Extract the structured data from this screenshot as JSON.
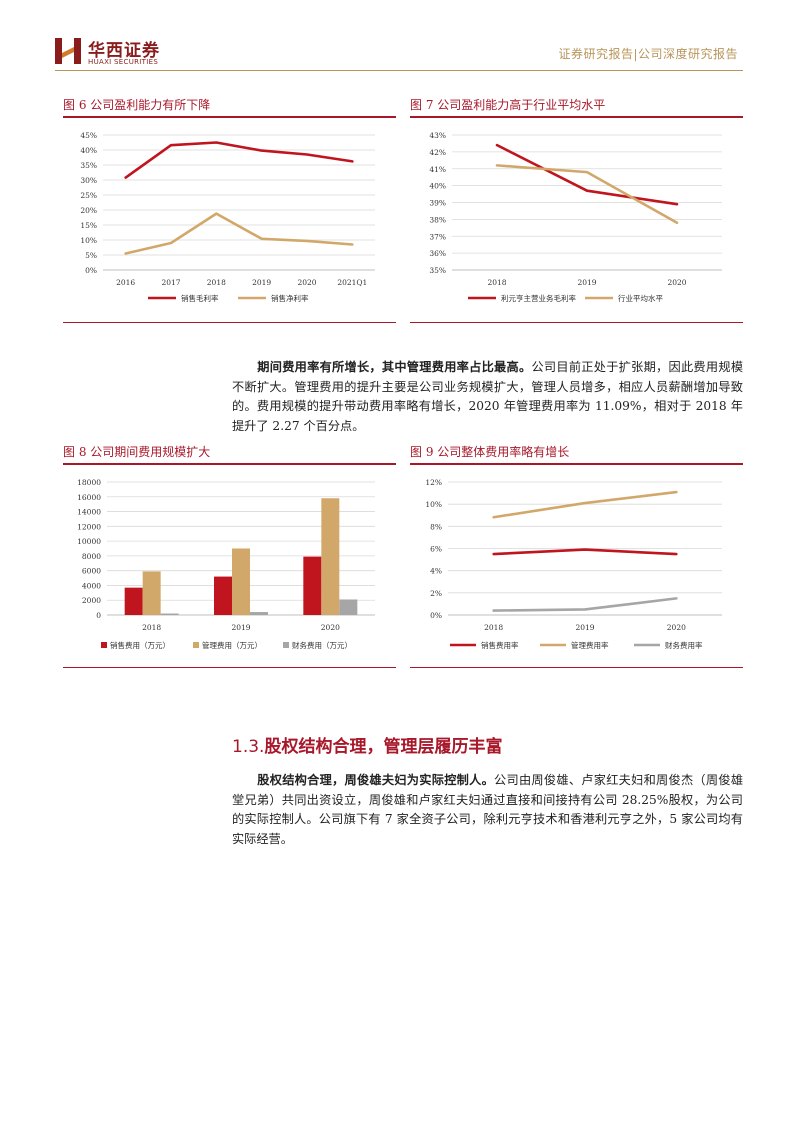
{
  "header": {
    "company_cn": "华西证券",
    "company_en": "HUAXI SECURITIES",
    "report_type": "证券研究报告|公司深度研究报告"
  },
  "figures": [
    {
      "title": "图 6   公司盈利能力有所下降"
    },
    {
      "title": "图 7   公司盈利能力高于行业平均水平"
    },
    {
      "title": "图 8   公司期间费用规模扩大"
    },
    {
      "title": "图 9   公司整体费用率略有增长"
    }
  ],
  "paragraph1": {
    "bold": "期间费用率有所增长，其中管理费用率占比最高。",
    "text": "公司目前正处于扩张期，因此费用规模不断扩大。管理费用的提升主要是公司业务规模扩大，管理人员增多，相应人员薪酬增加导致的。费用规模的提升带动费用率略有增长，2020 年管理费用率为 11.09%，相对于 2018 年提升了 2.27 个百分点。"
  },
  "section": {
    "number": "1.3.",
    "title": "股权结构合理，管理层履历丰富"
  },
  "paragraph2": {
    "bold": "股权结构合理，周俊雄夫妇为实际控制人。",
    "text": "公司由周俊雄、卢家红夫妇和周俊杰（周俊雄堂兄弟）共同出资设立，周俊雄和卢家红夫妇通过直接和间接持有公司 28.25%股权，为公司的实际控制人。公司旗下有 7 家全资子公司，除利元亨技术和香港利元亨之外，5 家公司均有实际经营。"
  },
  "chart_data": [
    {
      "type": "line",
      "x": [
        "2016",
        "2017",
        "2018",
        "2019",
        "2020",
        "2021Q1"
      ],
      "series": [
        {
          "name": "销售毛利率",
          "values": [
            30.8,
            41.6,
            42.5,
            39.8,
            38.5,
            36.2
          ],
          "color": "#c0141e"
        },
        {
          "name": "销售净利率",
          "values": [
            5.5,
            9.0,
            18.8,
            10.4,
            9.7,
            8.5
          ],
          "color": "#d2a86a"
        }
      ],
      "ylim": [
        0,
        45
      ],
      "yticks": [
        "0%",
        "5%",
        "10%",
        "15%",
        "20%",
        "25%",
        "30%",
        "35%",
        "40%",
        "45%"
      ],
      "grid": true,
      "legend": "bottom"
    },
    {
      "type": "line",
      "x": [
        "2018",
        "2019",
        "2020"
      ],
      "series": [
        {
          "name": "利元亨主营业务毛利率",
          "values": [
            42.4,
            39.7,
            38.9
          ],
          "color": "#c0141e"
        },
        {
          "name": "行业平均水平",
          "values": [
            41.2,
            40.8,
            37.8
          ],
          "color": "#d2a86a"
        }
      ],
      "ylim": [
        35,
        43
      ],
      "yticks": [
        "35%",
        "36%",
        "37%",
        "38%",
        "39%",
        "40%",
        "41%",
        "42%",
        "43%"
      ],
      "grid": true,
      "legend": "bottom"
    },
    {
      "type": "bar",
      "categories": [
        "2018",
        "2019",
        "2020"
      ],
      "series": [
        {
          "name": "销售费用（万元）",
          "values": [
            3700,
            5200,
            7900
          ],
          "color": "#c0141e"
        },
        {
          "name": "管理费用（万元）",
          "values": [
            5900,
            9000,
            15800
          ],
          "color": "#d2a86a"
        },
        {
          "name": "财务费用（万元）",
          "values": [
            200,
            400,
            2100
          ],
          "color": "#a6a6a6"
        }
      ],
      "ylim": [
        0,
        18000
      ],
      "yticks": [
        "0",
        "2000",
        "4000",
        "6000",
        "8000",
        "10000",
        "12000",
        "14000",
        "16000",
        "18000"
      ],
      "grid": true,
      "legend": "bottom"
    },
    {
      "type": "line",
      "x": [
        "2018",
        "2019",
        "2020"
      ],
      "series": [
        {
          "name": "销售费用率",
          "values": [
            5.5,
            5.9,
            5.5
          ],
          "color": "#c0141e"
        },
        {
          "name": "管理费用率",
          "values": [
            8.82,
            10.1,
            11.09
          ],
          "color": "#d2a86a"
        },
        {
          "name": "财务费用率",
          "values": [
            0.4,
            0.5,
            1.5
          ],
          "color": "#a6a6a6"
        }
      ],
      "ylim": [
        0,
        12
      ],
      "yticks": [
        "0%",
        "2%",
        "4%",
        "6%",
        "8%",
        "10%",
        "12%"
      ],
      "grid": true,
      "legend": "bottom"
    }
  ]
}
